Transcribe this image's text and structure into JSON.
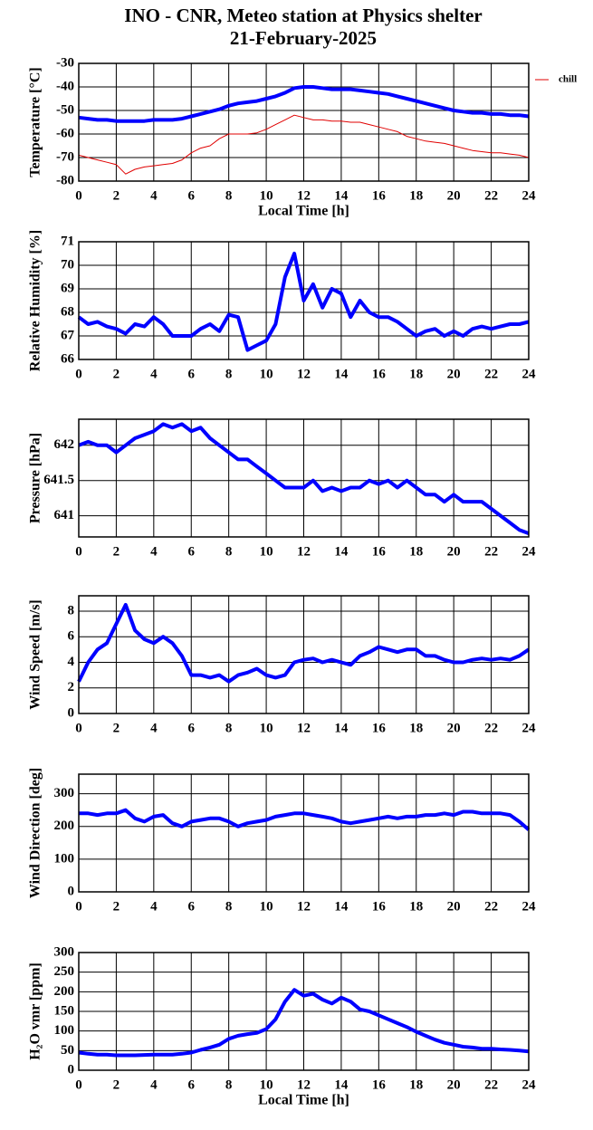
{
  "title": [
    "INO - CNR, Meteo station at Physics shelter",
    "21-February-2025"
  ],
  "chart_data": [
    {
      "type": "line",
      "ylabel": "Temperature [°C]",
      "xlabel": "Local Time [h]",
      "grid": true,
      "legend": "outside right",
      "xlim": [
        0,
        24
      ],
      "xticks": [
        0,
        2,
        4,
        6,
        8,
        10,
        12,
        14,
        16,
        18,
        20,
        22,
        24
      ],
      "ylim": [
        -80,
        -30
      ],
      "yticks": [
        -80,
        -70,
        -60,
        -50,
        -40,
        -30
      ],
      "x": [
        0,
        0.5,
        1,
        1.5,
        2,
        2.5,
        3,
        3.5,
        4,
        4.5,
        5,
        5.5,
        6,
        6.5,
        7,
        7.5,
        8,
        8.5,
        9,
        9.5,
        10,
        10.5,
        11,
        11.5,
        12,
        12.5,
        13,
        13.5,
        14,
        14.5,
        15,
        15.5,
        16,
        16.5,
        17,
        17.5,
        18,
        18.5,
        19,
        19.5,
        20,
        20.5,
        21,
        21.5,
        22,
        22.5,
        23,
        23.5,
        24
      ],
      "series": [
        {
          "color": "#0000ff",
          "values": [
            -53,
            -53.5,
            -54,
            -54,
            -54.5,
            -54.5,
            -54.5,
            -54.5,
            -54,
            -54,
            -54,
            -53.5,
            -52.5,
            -51.5,
            -50.5,
            -49.5,
            -48,
            -47,
            -46.5,
            -46,
            -45,
            -44,
            -42.5,
            -40.5,
            -40,
            -40,
            -40.5,
            -41,
            -41,
            -41,
            -41.5,
            -42,
            -42.5,
            -43,
            -44,
            -45,
            -46,
            -47,
            -48,
            -49,
            -50,
            -50.5,
            -51,
            -51,
            -51.5,
            -51.5,
            -52,
            -52,
            -52.5
          ]
        },
        {
          "name": "chill",
          "color": "#e00000",
          "values": [
            -69,
            -70,
            -71,
            -72,
            -73,
            -77,
            -75,
            -74,
            -73.5,
            -73,
            -72.5,
            -71,
            -68,
            -66,
            -65,
            -62,
            -60,
            -60,
            -60,
            -59.5,
            -58,
            -56,
            -54,
            -52,
            -53,
            -54,
            -54,
            -54.5,
            -54.5,
            -55,
            -55,
            -56,
            -57,
            -58,
            -59,
            -61,
            -62,
            -63,
            -63.5,
            -64,
            -65,
            -66,
            -67,
            -67.5,
            -68,
            -68,
            -68.5,
            -69,
            -70
          ]
        }
      ]
    },
    {
      "type": "line",
      "ylabel": "Relative Humidity [%]",
      "grid": true,
      "xlim": [
        0,
        24
      ],
      "xticks": [
        0,
        2,
        4,
        6,
        8,
        10,
        12,
        14,
        16,
        18,
        20,
        22,
        24
      ],
      "ylim": [
        66,
        71
      ],
      "yticks": [
        66,
        67,
        68,
        69,
        70,
        71
      ],
      "x": [
        0,
        0.5,
        1,
        1.5,
        2,
        2.5,
        3,
        3.5,
        4,
        4.5,
        5,
        5.5,
        6,
        6.5,
        7,
        7.5,
        8,
        8.5,
        9,
        9.5,
        10,
        10.5,
        11,
        11.5,
        12,
        12.5,
        13,
        13.5,
        14,
        14.5,
        15,
        15.5,
        16,
        16.5,
        17,
        17.5,
        18,
        18.5,
        19,
        19.5,
        20,
        20.5,
        21,
        21.5,
        22,
        22.5,
        23,
        23.5,
        24
      ],
      "series": [
        {
          "color": "#0000ff",
          "values": [
            67.8,
            67.5,
            67.6,
            67.4,
            67.3,
            67.1,
            67.5,
            67.4,
            67.8,
            67.5,
            67.0,
            67.0,
            67.0,
            67.3,
            67.5,
            67.2,
            67.9,
            67.8,
            66.4,
            66.6,
            66.8,
            67.5,
            69.5,
            70.5,
            68.5,
            69.2,
            68.2,
            69.0,
            68.8,
            67.8,
            68.5,
            68.0,
            67.8,
            67.8,
            67.6,
            67.3,
            67.0,
            67.2,
            67.3,
            67.0,
            67.2,
            67.0,
            67.3,
            67.4,
            67.3,
            67.4,
            67.5,
            67.5,
            67.6
          ]
        }
      ]
    },
    {
      "type": "line",
      "ylabel": "Pressure [hPa]",
      "grid": true,
      "xlim": [
        0,
        24
      ],
      "xticks": [
        0,
        2,
        4,
        6,
        8,
        10,
        12,
        14,
        16,
        18,
        20,
        22,
        24
      ],
      "ylim": [
        640.7,
        642.37
      ],
      "yticks": [
        641,
        641.5,
        642
      ],
      "x": [
        0,
        0.5,
        1,
        1.5,
        2,
        2.5,
        3,
        3.5,
        4,
        4.5,
        5,
        5.5,
        6,
        6.5,
        7,
        7.5,
        8,
        8.5,
        9,
        9.5,
        10,
        10.5,
        11,
        11.5,
        12,
        12.5,
        13,
        13.5,
        14,
        14.5,
        15,
        15.5,
        16,
        16.5,
        17,
        17.5,
        18,
        18.5,
        19,
        19.5,
        20,
        20.5,
        21,
        21.5,
        22,
        22.5,
        23,
        23.5,
        24
      ],
      "series": [
        {
          "color": "#0000ff",
          "values": [
            642.0,
            642.05,
            642.0,
            642.0,
            641.9,
            642.0,
            642.1,
            642.15,
            642.2,
            642.3,
            642.25,
            642.3,
            642.2,
            642.25,
            642.1,
            642.0,
            641.9,
            641.8,
            641.8,
            641.7,
            641.6,
            641.5,
            641.4,
            641.4,
            641.4,
            641.5,
            641.35,
            641.4,
            641.35,
            641.4,
            641.4,
            641.5,
            641.45,
            641.5,
            641.4,
            641.5,
            641.4,
            641.3,
            641.3,
            641.2,
            641.3,
            641.2,
            641.2,
            641.2,
            641.1,
            641.0,
            640.9,
            640.8,
            640.75
          ]
        }
      ]
    },
    {
      "type": "line",
      "ylabel": "Wind Speed [m/s]",
      "grid": true,
      "xlim": [
        0,
        24
      ],
      "xticks": [
        0,
        2,
        4,
        6,
        8,
        10,
        12,
        14,
        16,
        18,
        20,
        22,
        24
      ],
      "ylim": [
        0,
        9.2
      ],
      "yticks": [
        0,
        2,
        4,
        6,
        8
      ],
      "x": [
        0,
        0.5,
        1,
        1.5,
        2,
        2.5,
        3,
        3.5,
        4,
        4.5,
        5,
        5.5,
        6,
        6.5,
        7,
        7.5,
        8,
        8.5,
        9,
        9.5,
        10,
        10.5,
        11,
        11.5,
        12,
        12.5,
        13,
        13.5,
        14,
        14.5,
        15,
        15.5,
        16,
        16.5,
        17,
        17.5,
        18,
        18.5,
        19,
        19.5,
        20,
        20.5,
        21,
        21.5,
        22,
        22.5,
        23,
        23.5,
        24
      ],
      "series": [
        {
          "color": "#0000ff",
          "values": [
            2.5,
            4,
            5,
            5.5,
            7,
            8.5,
            6.5,
            5.8,
            5.5,
            6,
            5.5,
            4.5,
            3,
            3,
            2.8,
            3,
            2.5,
            3,
            3.2,
            3.5,
            3,
            2.8,
            3,
            4,
            4.2,
            4.3,
            4,
            4.2,
            4,
            3.8,
            4.5,
            4.8,
            5.2,
            5,
            4.8,
            5,
            5,
            4.5,
            4.5,
            4.2,
            4,
            4,
            4.2,
            4.3,
            4.2,
            4.3,
            4.2,
            4.5,
            5
          ]
        }
      ]
    },
    {
      "type": "line",
      "ylabel": "Wind Direction [deg]",
      "grid": true,
      "xlim": [
        0,
        24
      ],
      "xticks": [
        0,
        2,
        4,
        6,
        8,
        10,
        12,
        14,
        16,
        18,
        20,
        22,
        24
      ],
      "ylim": [
        0,
        360
      ],
      "yticks": [
        0,
        100,
        200,
        300
      ],
      "x": [
        0,
        0.5,
        1,
        1.5,
        2,
        2.5,
        3,
        3.5,
        4,
        4.5,
        5,
        5.5,
        6,
        6.5,
        7,
        7.5,
        8,
        8.5,
        9,
        9.5,
        10,
        10.5,
        11,
        11.5,
        12,
        12.5,
        13,
        13.5,
        14,
        14.5,
        15,
        15.5,
        16,
        16.5,
        17,
        17.5,
        18,
        18.5,
        19,
        19.5,
        20,
        20.5,
        21,
        21.5,
        22,
        22.5,
        23,
        23.5,
        24
      ],
      "series": [
        {
          "color": "#0000ff",
          "values": [
            240,
            240,
            235,
            240,
            240,
            250,
            225,
            215,
            230,
            235,
            210,
            200,
            215,
            220,
            225,
            225,
            215,
            200,
            210,
            215,
            220,
            230,
            235,
            240,
            240,
            235,
            230,
            225,
            215,
            210,
            215,
            220,
            225,
            230,
            225,
            230,
            230,
            235,
            235,
            240,
            235,
            245,
            245,
            240,
            240,
            240,
            235,
            215,
            190
          ]
        }
      ]
    },
    {
      "type": "line",
      "ylabel": "H₂O vmr [ppm]",
      "xlabel": "Local Time [h]",
      "grid": true,
      "xlim": [
        0,
        24
      ],
      "xticks": [
        0,
        2,
        4,
        6,
        8,
        10,
        12,
        14,
        16,
        18,
        20,
        22,
        24
      ],
      "ylim": [
        0,
        300
      ],
      "yticks": [
        0,
        50,
        100,
        150,
        200,
        250,
        300
      ],
      "x": [
        0,
        0.5,
        1,
        1.5,
        2,
        2.5,
        3,
        3.5,
        4,
        4.5,
        5,
        5.5,
        6,
        6.5,
        7,
        7.5,
        8,
        8.5,
        9,
        9.5,
        10,
        10.5,
        11,
        11.5,
        12,
        12.5,
        13,
        13.5,
        14,
        14.5,
        15,
        15.5,
        16,
        16.5,
        17,
        17.5,
        18,
        18.5,
        19,
        19.5,
        20,
        20.5,
        21,
        21.5,
        22,
        22.5,
        23,
        23.5,
        24
      ],
      "series": [
        {
          "color": "#0000ff",
          "values": [
            45,
            42,
            40,
            40,
            38,
            38,
            38,
            39,
            40,
            40,
            40,
            42,
            45,
            52,
            58,
            65,
            80,
            88,
            92,
            95,
            105,
            130,
            175,
            205,
            190,
            195,
            180,
            170,
            185,
            175,
            155,
            150,
            140,
            130,
            120,
            110,
            98,
            88,
            78,
            70,
            65,
            60,
            58,
            55,
            55,
            53,
            52,
            50,
            48
          ]
        }
      ]
    }
  ]
}
